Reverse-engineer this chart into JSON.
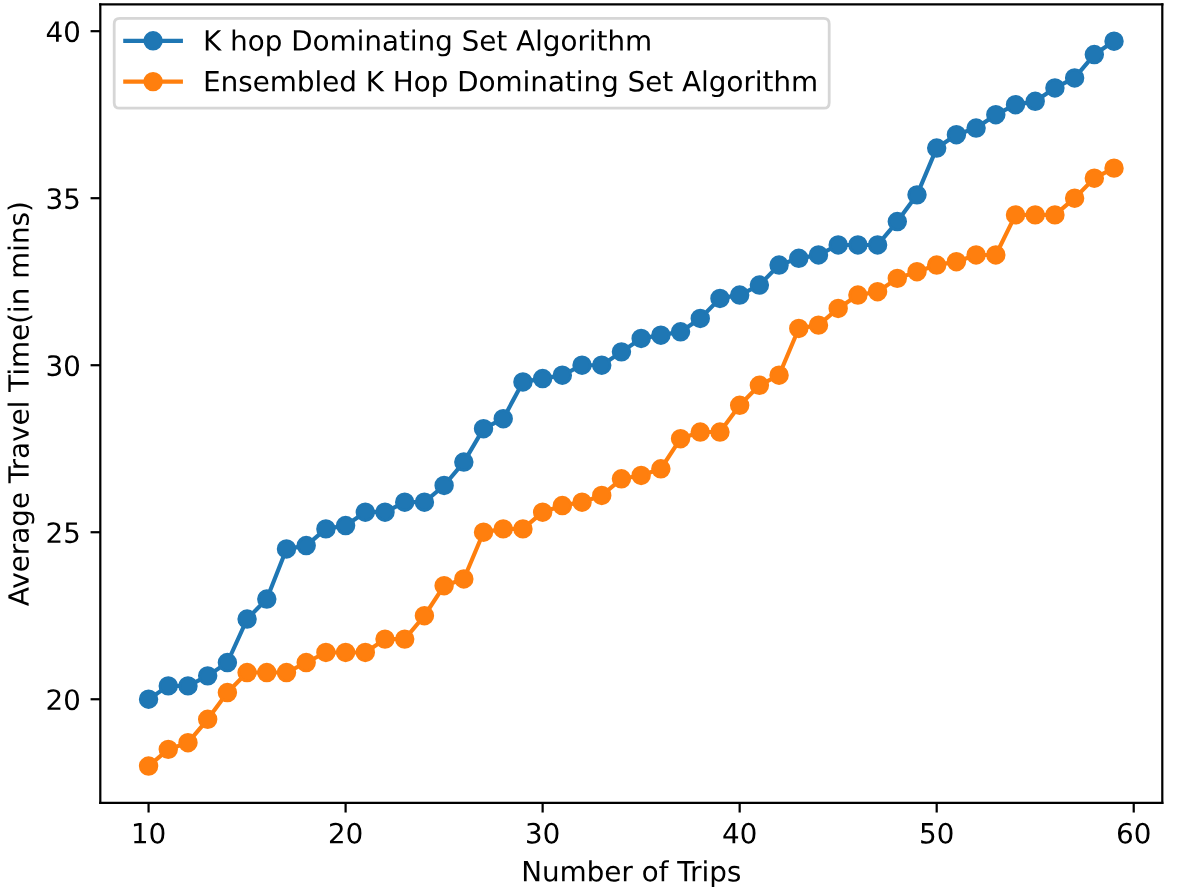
{
  "chart_data": {
    "type": "line",
    "xlabel": "Number of Trips",
    "ylabel": "Average Travel Time(in mins)",
    "x": [
      10,
      11,
      12,
      13,
      14,
      15,
      16,
      17,
      18,
      19,
      20,
      21,
      22,
      23,
      24,
      25,
      26,
      27,
      28,
      29,
      30,
      31,
      32,
      33,
      34,
      35,
      36,
      37,
      38,
      39,
      40,
      41,
      42,
      43,
      44,
      45,
      46,
      47,
      48,
      49,
      50,
      51,
      52,
      53,
      54,
      55,
      56,
      57,
      58,
      59
    ],
    "series": [
      {
        "name": "K hop Dominating Set Algorithm",
        "color": "#1f77b4",
        "values": [
          20.0,
          20.4,
          20.4,
          20.7,
          21.1,
          22.4,
          23.0,
          24.5,
          24.6,
          25.1,
          25.2,
          25.6,
          25.6,
          25.9,
          25.9,
          26.4,
          27.1,
          28.1,
          28.4,
          29.5,
          29.6,
          29.7,
          30.0,
          30.0,
          30.4,
          30.8,
          30.9,
          31.0,
          31.4,
          32.0,
          32.1,
          32.4,
          33.0,
          33.2,
          33.3,
          33.6,
          33.6,
          33.6,
          34.3,
          35.1,
          36.5,
          36.9,
          37.1,
          37.5,
          37.8,
          37.9,
          38.3,
          38.6,
          39.3,
          39.7
        ]
      },
      {
        "name": "Ensembled K Hop Dominating Set Algorithm",
        "color": "#ff7f0e",
        "values": [
          18.0,
          18.5,
          18.7,
          19.4,
          20.2,
          20.8,
          20.8,
          20.8,
          21.1,
          21.4,
          21.4,
          21.4,
          21.8,
          21.8,
          22.5,
          23.4,
          23.6,
          25.0,
          25.1,
          25.1,
          25.6,
          25.8,
          25.9,
          26.1,
          26.6,
          26.7,
          26.9,
          27.8,
          28.0,
          28.0,
          28.8,
          29.4,
          29.7,
          31.1,
          31.2,
          31.7,
          32.1,
          32.2,
          32.6,
          32.8,
          33.0,
          33.1,
          33.3,
          33.3,
          34.5,
          34.5,
          34.5,
          35.0,
          35.6,
          35.9
        ]
      }
    ],
    "xlim": [
      7.55,
      61.45
    ],
    "ylim": [
      16.9,
      40.8
    ],
    "xticks": [
      10,
      20,
      30,
      40,
      50,
      60
    ],
    "yticks": [
      20,
      25,
      30,
      35,
      40
    ],
    "legend": "top left",
    "marker": "circle",
    "line_style": "solid",
    "grid": false
  }
}
